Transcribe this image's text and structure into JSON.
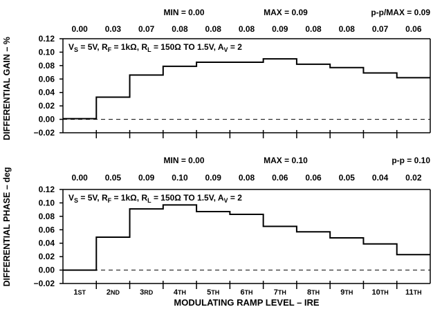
{
  "colors": {
    "line": "#000000",
    "background": "#ffffff"
  },
  "chart_data": [
    {
      "type": "line",
      "step": true,
      "ylabel": "DIFFERENTIAL GAIN – %",
      "stats": {
        "min": "MIN = 0.00",
        "max": "MAX = 0.09",
        "pp": "p-p/MAX = 0.09"
      },
      "condition": {
        "vs": "V",
        "vs_sub": "S",
        "vs_rest": " = 5V, R",
        "rf_sub": "F",
        "rf_rest": " = 1kΩ, R",
        "rl_sub": "L",
        "rl_rest": " = 150Ω TO 1.5V,  A",
        "av_sub": "V",
        "av_rest": " = 2"
      },
      "top_values": [
        "0.00",
        "0.03",
        "0.07",
        "0.08",
        "0.08",
        "0.08",
        "0.09",
        "0.08",
        "0.08",
        "0.07",
        "0.06"
      ],
      "categories": [
        "1ST",
        "2ND",
        "3RD",
        "4TH",
        "5TH",
        "6TH",
        "7TH",
        "8TH",
        "9TH",
        "10TH",
        "11TH"
      ],
      "values": [
        0.001,
        0.033,
        0.066,
        0.079,
        0.085,
        0.085,
        0.09,
        0.082,
        0.077,
        0.069,
        0.062
      ],
      "yticks": [
        "0.12",
        "0.10",
        "0.08",
        "0.06",
        "0.04",
        "0.02",
        "0.00",
        "−0.02"
      ],
      "ylim": [
        -0.02,
        0.12
      ],
      "zero_line": "dashed"
    },
    {
      "type": "line",
      "step": true,
      "ylabel": "DIFFERENTIAL PHASE – deg",
      "stats": {
        "min": "MIN = 0.00",
        "max": "MAX = 0.10",
        "pp": "p-p = 0.10"
      },
      "condition": {
        "vs": "V",
        "vs_sub": "S",
        "vs_rest": " = 5V, R",
        "rf_sub": "F",
        "rf_rest": " = 1kΩ, R",
        "rl_sub": "L",
        "rl_rest": " = 150Ω TO 1.5V,  A",
        "av_sub": "V",
        "av_rest": " = 2"
      },
      "top_values": [
        "0.00",
        "0.05",
        "0.09",
        "0.10",
        "0.09",
        "0.08",
        "0.06",
        "0.06",
        "0.05",
        "0.04",
        "0.02"
      ],
      "categories": [
        "1ST",
        "2ND",
        "3RD",
        "4TH",
        "5TH",
        "6TH",
        "7TH",
        "8TH",
        "9TH",
        "10TH",
        "11TH"
      ],
      "values": [
        0.0,
        0.049,
        0.091,
        0.097,
        0.087,
        0.083,
        0.065,
        0.057,
        0.048,
        0.039,
        0.023
      ],
      "yticks": [
        "0.12",
        "0.10",
        "0.08",
        "0.06",
        "0.04",
        "0.02",
        "0.00",
        "−0.02"
      ],
      "ylim": [
        -0.02,
        0.12
      ],
      "zero_line": "dashed"
    }
  ],
  "xlabel": "MODULATING RAMP LEVEL – IRE"
}
